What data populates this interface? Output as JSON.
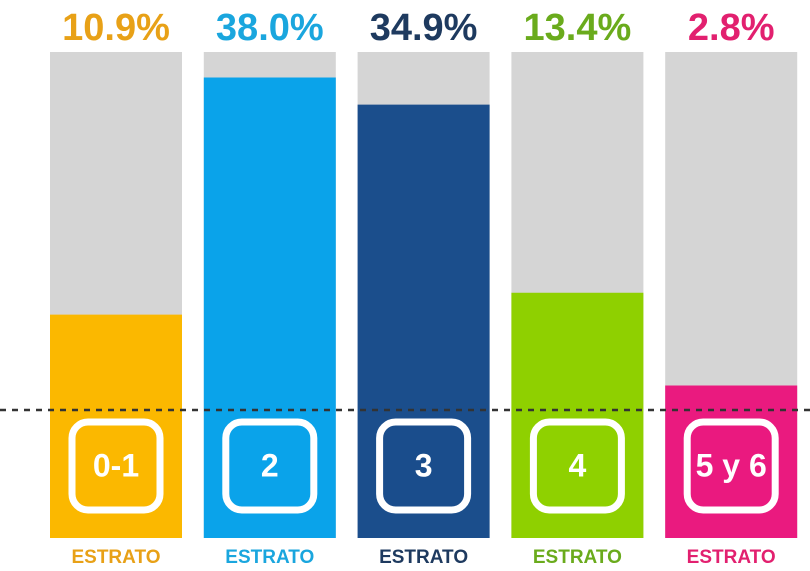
{
  "chart_data": {
    "type": "bar",
    "categories": [
      "0-1",
      "2",
      "3",
      "4",
      "5 y 6"
    ],
    "sublabels": [
      "ESTRATO",
      "ESTRATO",
      "ESTRATO",
      "ESTRATO",
      "ESTRATO"
    ],
    "values": [
      10.9,
      38,
      34.9,
      13.4,
      2.8
    ],
    "value_labels": [
      "10.9%",
      "38.0%",
      "34.9%",
      "13.4%",
      "2.8%"
    ],
    "colors": [
      "#fbb800",
      "#0aa3ea",
      "#1b4e8c",
      "#8fd000",
      "#ea1a7f"
    ],
    "label_colors": [
      "#e8a117",
      "#1aa6de",
      "#1e3a5f",
      "#6aab1c",
      "#e2206f"
    ],
    "ylim": [
      0,
      40
    ]
  }
}
